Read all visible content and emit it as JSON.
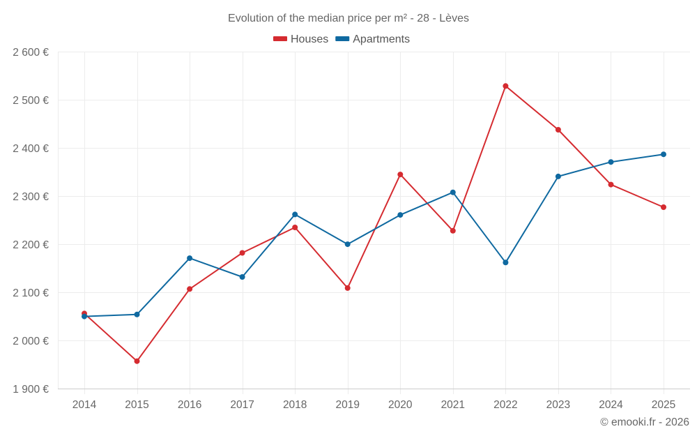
{
  "chart_data": {
    "type": "line",
    "title": "Evolution of the median price per m² - 28 - Lèves",
    "xlabel": "",
    "ylabel": "",
    "x": [
      "2014",
      "2015",
      "2016",
      "2017",
      "2018",
      "2019",
      "2020",
      "2021",
      "2022",
      "2023",
      "2024",
      "2025"
    ],
    "ylim": [
      1900,
      2600
    ],
    "yticks": [
      1900,
      2000,
      2100,
      2200,
      2300,
      2400,
      2500,
      2600
    ],
    "ytick_labels": [
      "1 900 €",
      "2 000 €",
      "2 100 €",
      "2 200 €",
      "2 300 €",
      "2 400 €",
      "2 500 €",
      "2 600 €"
    ],
    "grid": true,
    "legend_position": "top-center",
    "series": [
      {
        "name": "Houses",
        "color": "#d52b30",
        "values": [
          2056,
          1957,
          2107,
          2182,
          2235,
          2109,
          2345,
          2228,
          2529,
          2438,
          2324,
          2277
        ]
      },
      {
        "name": "Apartments",
        "color": "#0f69a0",
        "values": [
          2050,
          2054,
          2171,
          2132,
          2262,
          2200,
          2261,
          2308,
          2162,
          2341,
          2371,
          2387
        ]
      }
    ],
    "credit": "© emooki.fr - 2026"
  }
}
